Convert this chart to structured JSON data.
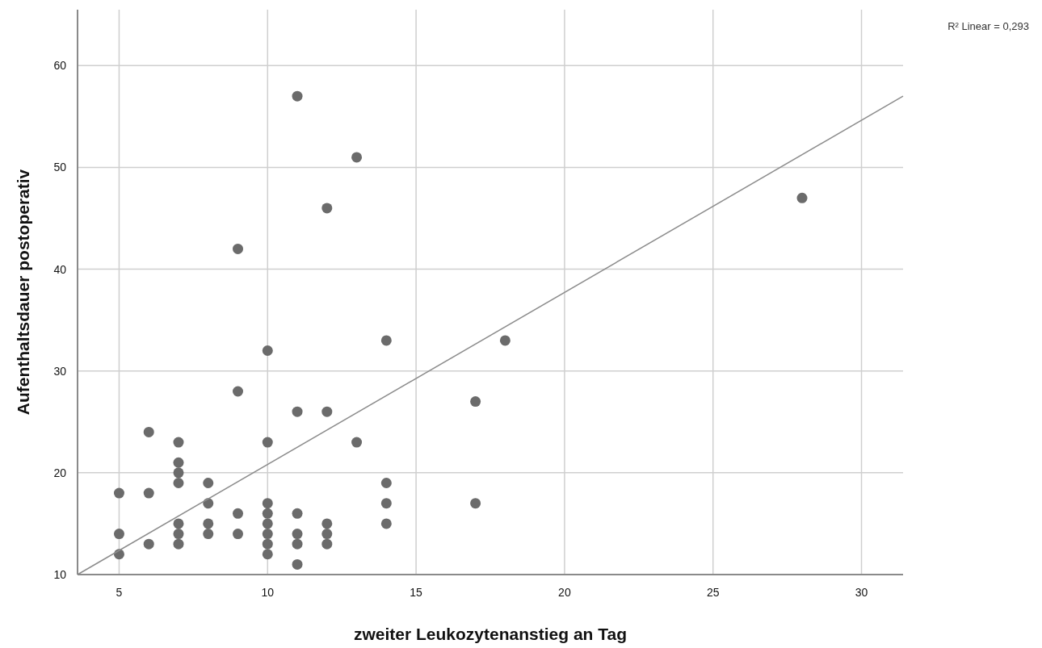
{
  "chart_data": {
    "type": "scatter",
    "xlabel": "zweiter Leukozytenanstieg an Tag",
    "ylabel": "Aufenthaltsdauer postoperativ",
    "annotations": [
      "R² Linear = 0,293"
    ],
    "xlim": [
      3.6,
      31.4
    ],
    "xticks": [
      5,
      10,
      15,
      20,
      25,
      30
    ],
    "ylim": [
      10,
      65.5
    ],
    "yticks": [
      10,
      20,
      30,
      40,
      50,
      60
    ],
    "grid": true,
    "marker": "circle",
    "series": [
      {
        "color": "#6b6b6b",
        "x": [
          5,
          5,
          5,
          6,
          6,
          6,
          7,
          7,
          7,
          7,
          7,
          7,
          7,
          8,
          8,
          8,
          8,
          9,
          9,
          9,
          9,
          10,
          10,
          10,
          10,
          10,
          10,
          10,
          10,
          11,
          11,
          11,
          11,
          11,
          11,
          12,
          12,
          12,
          12,
          12,
          13,
          13,
          14,
          14,
          14,
          14,
          17,
          17,
          18,
          28
        ],
        "values": [
          18,
          14,
          12,
          24,
          18,
          13,
          23,
          21,
          20,
          19,
          15,
          14,
          13,
          19,
          17,
          15,
          14,
          42,
          28,
          16,
          14,
          32,
          23,
          17,
          16,
          15,
          14,
          13,
          12,
          57,
          26,
          16,
          14,
          13,
          11,
          46,
          26,
          15,
          14,
          13,
          51,
          23,
          33,
          19,
          17,
          15,
          27,
          17,
          33,
          47
        ]
      },
      {
        "type": "line",
        "color": "#8c8c8c",
        "x": [
          3.6,
          31.4
        ],
        "values": [
          10,
          57
        ],
        "marker": "none"
      }
    ]
  }
}
